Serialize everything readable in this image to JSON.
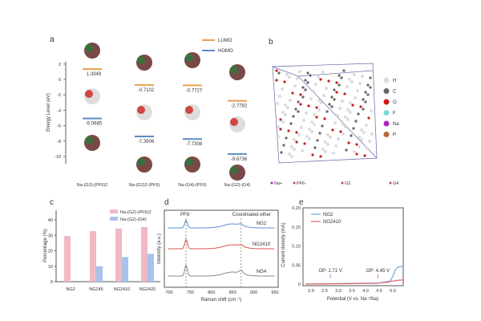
{
  "panels": {
    "a": "a",
    "b": "b",
    "c": "c",
    "d": "d",
    "e": "e"
  },
  "chart_data": [
    {
      "panel": "a",
      "type": "scatter",
      "ylabel": "Energy Level (eV)",
      "ylim": [
        -11,
        2.5
      ],
      "yticks": [
        2,
        0,
        -2,
        -4,
        -6,
        -8,
        -10
      ],
      "legend": [
        "LUMO",
        "HOMO"
      ],
      "colors": {
        "LUMO": "#e8a050",
        "HOMO": "#5b8ac6"
      },
      "categories": [
        "Na-(G2)-(PF6)2",
        "Na-(G2)2-(PF6)",
        "Na-(G4)-(PF6)",
        "Na-(G2)-(G4)"
      ],
      "series": [
        {
          "name": "LUMO",
          "values": [
            1.3349,
            -0.7102,
            -0.7727,
            -2.7782
          ],
          "labels": [
            "1.3349",
            "-0.7102",
            "-0.7727",
            "-2.7782"
          ]
        },
        {
          "name": "HOMO",
          "values": [
            -5.0685,
            -7.3906,
            -7.7308,
            -9.6736
          ],
          "labels": [
            "-5.0685",
            "-7.3906",
            "-7.7308",
            "-9.6736"
          ]
        }
      ]
    },
    {
      "panel": "b",
      "type": "other",
      "legend": [
        "H",
        "C",
        "O",
        "F",
        "Na",
        "P"
      ],
      "colors": [
        "#dddddd",
        "#666666",
        "#d01818",
        "#7fd8e0",
        "#b020c0",
        "#b8683a"
      ],
      "species": [
        "Na+",
        "PF6-",
        "G2",
        "G4"
      ]
    },
    {
      "panel": "c",
      "type": "bar",
      "ylabel": "Percentage (%)",
      "ylim": [
        0,
        45
      ],
      "yticks": [
        0,
        10,
        20,
        30,
        40
      ],
      "categories": [
        "NG2",
        "NG24_5",
        "NG24_10",
        "NG24_20"
      ],
      "series": [
        {
          "name": "Na-(G2)-(PF6)2",
          "color": "#f2b8c4",
          "values": [
            29.5,
            32.7,
            34.4,
            35.4
          ]
        },
        {
          "name": "Na-(G2)-(G4)",
          "color": "#a9c2ec",
          "values": [
            0,
            10,
            16,
            18
          ]
        }
      ]
    },
    {
      "panel": "d",
      "type": "line",
      "xlabel": "Raman shift (cm⁻¹)",
      "ylabel": "Intensity (a.u.)",
      "xlim": [
        695,
        950
      ],
      "xticks": [
        700,
        750,
        800,
        850,
        900,
        950
      ],
      "annotations": [
        "PF6⁻",
        "Coordinated ether"
      ],
      "markers": [
        740,
        870
      ],
      "series": [
        {
          "name": "NG2",
          "color": "#5b93d6"
        },
        {
          "name": "NG24_10",
          "color": "#d9534f"
        },
        {
          "name": "NG4",
          "color": "#888888"
        }
      ]
    },
    {
      "panel": "e",
      "type": "line",
      "xlabel": "Potential (V vs. Na⁺/Na)",
      "ylabel": "Current density (mA)",
      "xlim": [
        1.8,
        5.4
      ],
      "ylim": [
        -0.01,
        0.2
      ],
      "xticks": [
        2.0,
        2.5,
        3.0,
        3.5,
        4.0,
        4.5,
        5.0
      ],
      "yticks": [
        0,
        0.05,
        0.1,
        0.15,
        0.2
      ],
      "ytick_labels": [
        "0",
        "0.05",
        "0.10",
        "0.15",
        "0.20"
      ],
      "series": [
        {
          "name": "NG2",
          "color": "#6fa3dc",
          "x": [
            1.8,
            4.5,
            4.9,
            5.0,
            5.1,
            5.2,
            5.4
          ],
          "y": [
            0,
            0.003,
            0.008,
            0.02,
            0.038,
            0.045,
            0.046
          ]
        },
        {
          "name": "NG24_10",
          "color": "#e06666",
          "x": [
            1.8,
            4.4,
            4.8,
            5.0,
            5.2,
            5.4
          ],
          "y": [
            0,
            0.002,
            0.005,
            0.008,
            0.01,
            0.011
          ]
        }
      ],
      "annotations": [
        {
          "text": "OP: 2.71 V",
          "x": 2.71,
          "color": "#6fa3dc"
        },
        {
          "text": "OP: 4.45 V",
          "x": 4.45,
          "color": "#e06666"
        }
      ]
    }
  ]
}
